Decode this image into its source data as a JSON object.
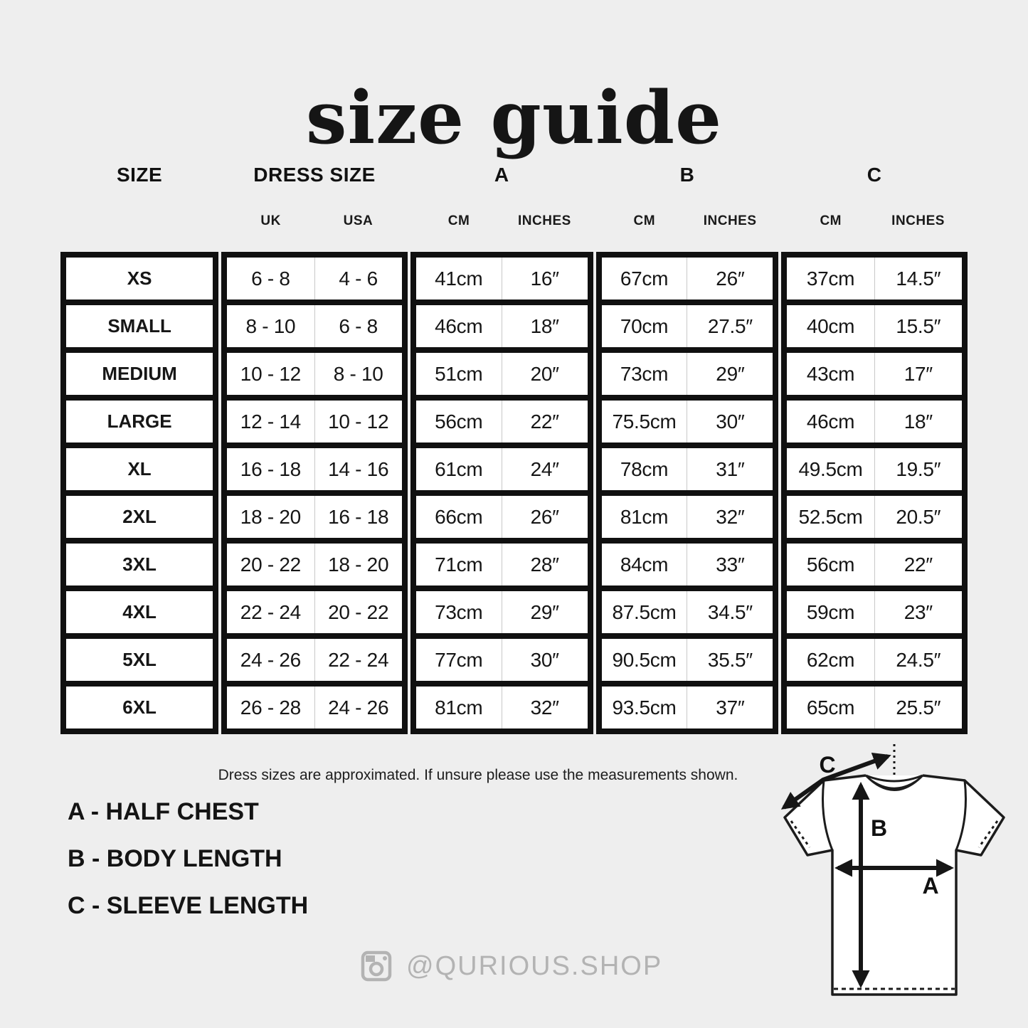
{
  "page": {
    "title": "size guide",
    "footnote": "Dress sizes are approximated. If unsure please use the measurements shown.",
    "legend": [
      "A - HALF CHEST",
      "B - BODY LENGTH",
      "C - SLEEVE LENGTH"
    ],
    "instagram_handle": "@QURIOUS.SHOP",
    "instagram_icon": "instagram-camera-icon"
  },
  "diagram": {
    "arrow_a_label": "A",
    "arrow_b_label": "B",
    "arrow_c_label": "C"
  },
  "colors": {
    "background": "#eeeeee",
    "table_border_black": "#101010",
    "cell_white": "#ffffff",
    "sub_divider_gray": "#c8c8c8",
    "muted_gray": "#b3b3b3",
    "text_black": "#111111"
  },
  "chart_data": {
    "type": "table",
    "title": "size guide",
    "column_groups": [
      "SIZE",
      "DRESS SIZE",
      "A",
      "B",
      "C"
    ],
    "sub_headers": [
      [],
      [
        "UK",
        "USA"
      ],
      [
        "CM",
        "INCHES"
      ],
      [
        "CM",
        "INCHES"
      ],
      [
        "CM",
        "INCHES"
      ]
    ],
    "columns": [
      "SIZE",
      "DRESS SIZE UK",
      "DRESS SIZE USA",
      "A CM",
      "A INCHES",
      "B CM",
      "B INCHES",
      "C CM",
      "C INCHES"
    ],
    "rows": [
      [
        "XS",
        "6 - 8",
        "4 - 6",
        "41cm",
        "16″",
        "67cm",
        "26″",
        "37cm",
        "14.5″"
      ],
      [
        "SMALL",
        "8 - 10",
        "6 - 8",
        "46cm",
        "18″",
        "70cm",
        "27.5″",
        "40cm",
        "15.5″"
      ],
      [
        "MEDIUM",
        "10 - 12",
        "8 - 10",
        "51cm",
        "20″",
        "73cm",
        "29″",
        "43cm",
        "17″"
      ],
      [
        "LARGE",
        "12 - 14",
        "10 - 12",
        "56cm",
        "22″",
        "75.5cm",
        "30″",
        "46cm",
        "18″"
      ],
      [
        "XL",
        "16 - 18",
        "14 - 16",
        "61cm",
        "24″",
        "78cm",
        "31″",
        "49.5cm",
        "19.5″"
      ],
      [
        "2XL",
        "18 - 20",
        "16 - 18",
        "66cm",
        "26″",
        "81cm",
        "32″",
        "52.5cm",
        "20.5″"
      ],
      [
        "3XL",
        "20 - 22",
        "18 - 20",
        "71cm",
        "28″",
        "84cm",
        "33″",
        "56cm",
        "22″"
      ],
      [
        "4XL",
        "22 - 24",
        "20 - 22",
        "73cm",
        "29″",
        "87.5cm",
        "34.5″",
        "59cm",
        "23″"
      ],
      [
        "5XL",
        "24 - 26",
        "22 - 24",
        "77cm",
        "30″",
        "90.5cm",
        "35.5″",
        "62cm",
        "24.5″"
      ],
      [
        "6XL",
        "26 - 28",
        "24 - 26",
        "81cm",
        "32″",
        "93.5cm",
        "37″",
        "65cm",
        "25.5″"
      ]
    ]
  }
}
